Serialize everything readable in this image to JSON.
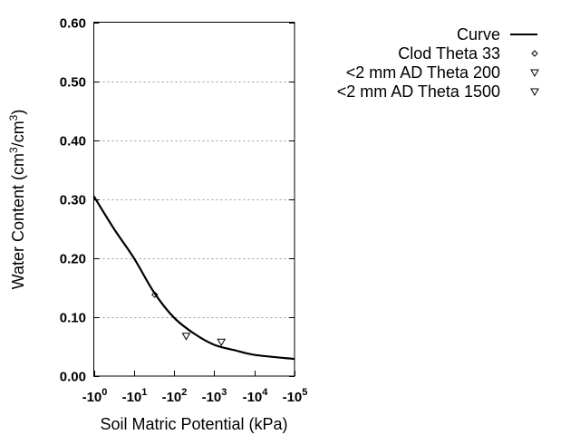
{
  "chart_data": {
    "type": "line",
    "title": "",
    "xlabel": "Soil Matric Potential (kPa)",
    "ylabel_main": "Water Content (cm",
    "ylabel_sup1": "3",
    "ylabel_mid": "/cm",
    "ylabel_sup2": "3",
    "ylabel_end": ")",
    "x_scale": "log (negative)",
    "xlim": [
      -1,
      -100000
    ],
    "ylim": [
      0,
      0.6
    ],
    "x_ticks": [
      {
        "value": -1,
        "base": "-10",
        "exp": "0"
      },
      {
        "value": -10,
        "base": "-10",
        "exp": "1"
      },
      {
        "value": -100,
        "base": "-10",
        "exp": "2"
      },
      {
        "value": -1000,
        "base": "-10",
        "exp": "3"
      },
      {
        "value": -10000,
        "base": "-10",
        "exp": "4"
      },
      {
        "value": -100000,
        "base": "-10",
        "exp": "5"
      }
    ],
    "y_ticks": [
      "0.00",
      "0.10",
      "0.20",
      "0.30",
      "0.40",
      "0.50",
      "0.60"
    ],
    "grid": "horizontal dotted",
    "legend_placement": "top-right outside",
    "series": [
      {
        "name": "Curve",
        "type": "line",
        "color": "#000000",
        "x": [
          -1,
          -3.16,
          -10,
          -31.6,
          -100,
          -316,
          -1000,
          -3162,
          -10000,
          -100000
        ],
        "y": [
          0.305,
          0.25,
          0.2,
          0.142,
          0.099,
          0.072,
          0.053,
          0.044,
          0.036,
          0.029
        ]
      },
      {
        "name": "Clod Theta 33",
        "type": "scatter",
        "marker": "diamond",
        "x": [
          -33
        ],
        "y": [
          0.138
        ]
      },
      {
        "name": "<2 mm AD Theta 200",
        "type": "scatter",
        "marker": "triangle-down",
        "x": [
          -200
        ],
        "y": [
          0.068
        ]
      },
      {
        "name": "<2 mm AD Theta 1500",
        "type": "scatter",
        "marker": "triangle-down",
        "x": [
          -1500
        ],
        "y": [
          0.058
        ]
      }
    ]
  }
}
